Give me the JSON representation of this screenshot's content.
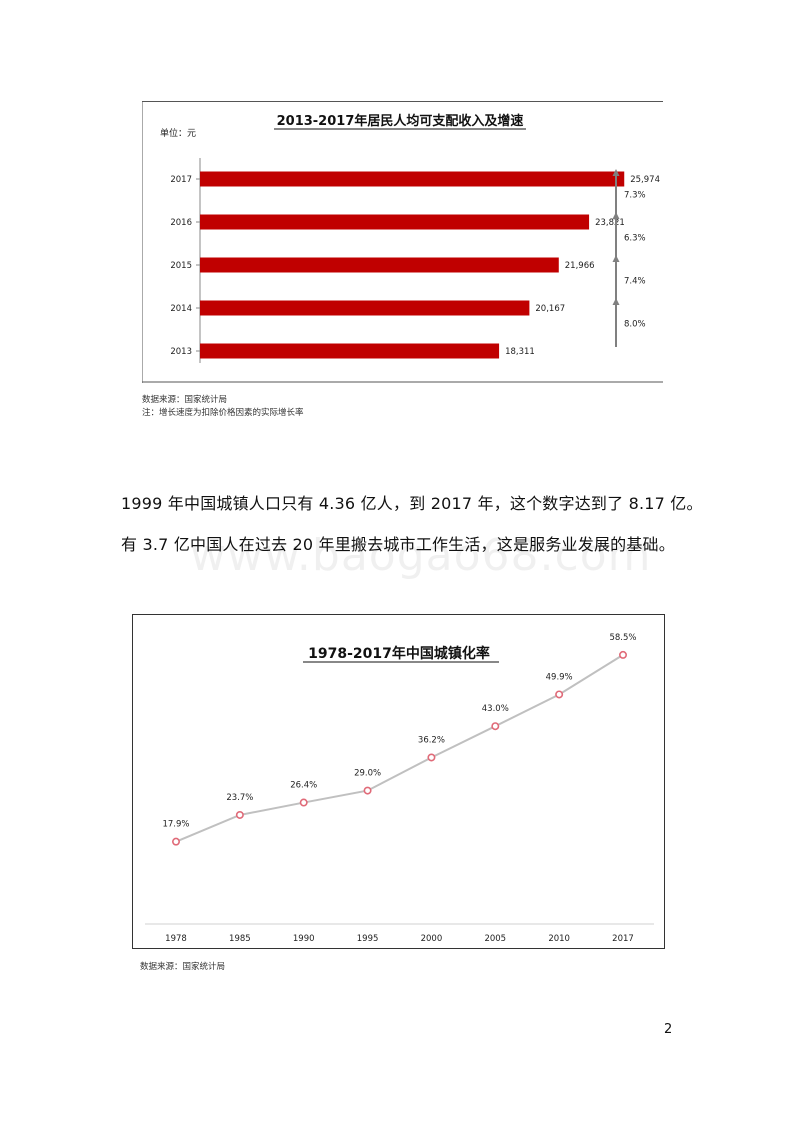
{
  "chart_data": [
    {
      "type": "bar",
      "orientation": "horizontal",
      "title": "2013-2017年居民人均可支配收入及增速",
      "unit_label": "单位：元",
      "categories": [
        "2017",
        "2016",
        "2015",
        "2014",
        "2013"
      ],
      "values": [
        25974,
        23821,
        21966,
        20167,
        18311
      ],
      "value_labels": [
        "25,974",
        "23,821",
        "21,966",
        "20,167",
        "18,311"
      ],
      "growth_labels": [
        "7.3%",
        "6.3%",
        "7.4%",
        "8.0%"
      ],
      "bar_color": "#c00000",
      "arrow_color": "#808080",
      "xlim": [
        0,
        30000
      ],
      "grid": false
    },
    {
      "type": "line",
      "title": "1978-2017年中国城镇化率",
      "x": [
        "1978",
        "1985",
        "1990",
        "1995",
        "2000",
        "2005",
        "2010",
        "2017"
      ],
      "values": [
        17.9,
        23.7,
        26.4,
        29.0,
        36.2,
        43.0,
        49.9,
        58.5
      ],
      "value_labels": [
        "17.9%",
        "23.7%",
        "26.4%",
        "29.0%",
        "36.2%",
        "43.0%",
        "49.9%",
        "58.5%"
      ],
      "line_color": "#c0c0c0",
      "marker_color": "#e06a78",
      "ylim": [
        0,
        65
      ],
      "grid": false
    }
  ],
  "source_notes": {
    "chart1_source": "数据来源：国家统计局",
    "chart1_note": "注：增长速度为扣除价格因素的实际增长率",
    "chart2_source": "数据来源：国家统计局"
  },
  "paragraph": {
    "line1": "1999 年中国城镇人口只有 4.36 亿人，到 2017 年，这个数字达到了 8.17 亿。",
    "line2": "有 3.7 亿中国人在过去 20 年里搬去城市工作生活，这是服务业发展的基础。"
  },
  "watermark": "www.baogao68.com",
  "page_number": "2"
}
